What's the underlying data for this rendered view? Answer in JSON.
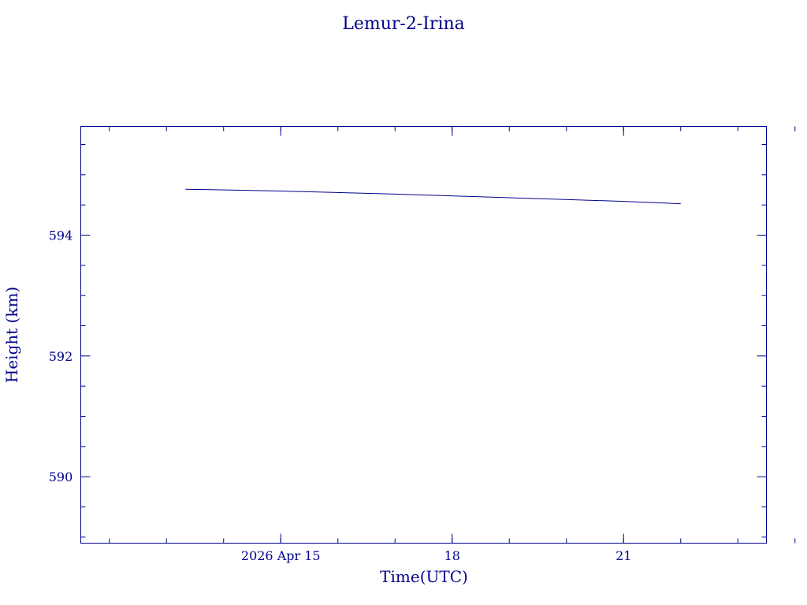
{
  "chart_data": {
    "type": "line",
    "title": "Lemur-2-Irina",
    "xlabel": "Time(UTC)",
    "ylabel": "Height (km)",
    "x_tick_labels": [
      {
        "date": "2026-04-15",
        "label": "2026 Apr 15"
      },
      {
        "date": "2026-04-18",
        "label": "18"
      },
      {
        "date": "2026-04-21",
        "label": "21"
      }
    ],
    "x_minor_ticks": [
      "2026-04-12",
      "2026-04-13",
      "2026-04-14",
      "2026-04-15",
      "2026-04-16",
      "2026-04-17",
      "2026-04-18",
      "2026-04-19",
      "2026-04-20",
      "2026-04-21",
      "2026-04-22",
      "2026-04-23",
      "2026-04-24"
    ],
    "xlim": [
      "2026-04-11 12:00",
      "2026-04-23 12:00"
    ],
    "ylim": [
      588.9,
      595.8
    ],
    "y_major_ticks": [
      590,
      592,
      594
    ],
    "y_minor_step": 0.5,
    "grid": false,
    "series": [
      {
        "color": "#00008b",
        "points": [
          {
            "x": "2026-04-13 08:00",
            "y": 594.76
          },
          {
            "x": "2026-04-15 00:00",
            "y": 594.73
          },
          {
            "x": "2026-04-17 00:00",
            "y": 594.68
          },
          {
            "x": "2026-04-19 00:00",
            "y": 594.62
          },
          {
            "x": "2026-04-21 00:00",
            "y": 594.56
          },
          {
            "x": "2026-04-22 00:00",
            "y": 594.52
          }
        ]
      }
    ]
  }
}
